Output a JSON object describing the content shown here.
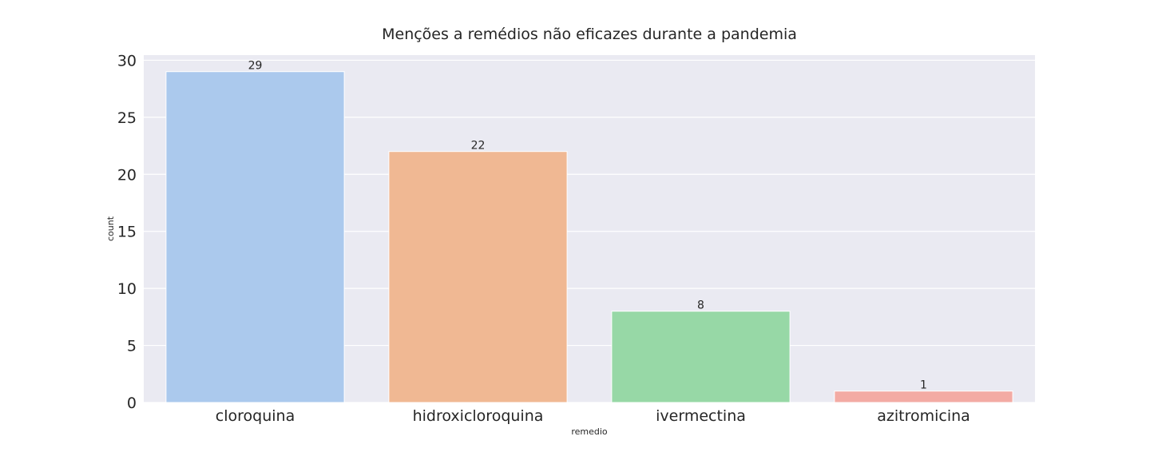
{
  "chart_data": {
    "type": "bar",
    "title": "Menções a remédios não eficazes durante a pandemia",
    "xlabel": "remedio",
    "ylabel": "count",
    "categories": [
      "cloroquina",
      "hidroxicloroquina",
      "ivermectina",
      "azitromicina"
    ],
    "values": [
      29,
      22,
      8,
      1
    ],
    "data_labels": [
      "29",
      "22",
      "8",
      "1"
    ],
    "colors": [
      "#abc9ed",
      "#f0b893",
      "#97d8a6",
      "#f3aba4"
    ],
    "ylim": [
      0,
      30
    ],
    "yticks": [
      0,
      5,
      10,
      15,
      20,
      25,
      30
    ],
    "grid": true,
    "background": "#eaeaf2"
  }
}
